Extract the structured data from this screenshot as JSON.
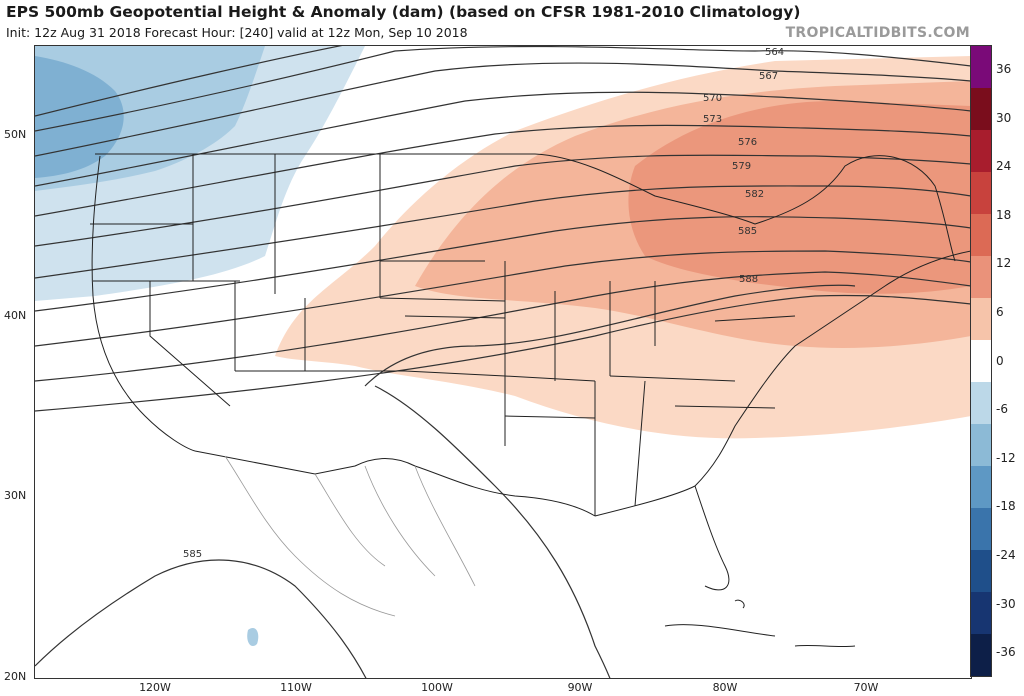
{
  "header": {
    "title": "EPS 500mb Geopotential Height & Anomaly (dam) (based on CFSR 1981-2010 Climatology)",
    "subtitle": "Init: 12z Aug 31 2018   Forecast Hour: [240]   valid at 12z Mon, Sep 10 2018",
    "brand": "TROPICALTIDBITS.COM"
  },
  "axes": {
    "lat_labels": [
      "50N",
      "40N",
      "30N",
      "20N"
    ],
    "lon_labels": [
      "120W",
      "110W",
      "100W",
      "90W",
      "80W",
      "70W"
    ]
  },
  "contour_labels": [
    "564",
    "567",
    "570",
    "573",
    "576",
    "579",
    "582",
    "585",
    "588",
    "585"
  ],
  "colorbar": {
    "labels": [
      "36",
      "30",
      "24",
      "18",
      "12",
      "6",
      "0",
      "-6",
      "-12",
      "-18",
      "-24",
      "-30",
      "-36"
    ],
    "colors": [
      "#7a0a78",
      "#7a0d1c",
      "#a81d2d",
      "#c8423d",
      "#dc6a55",
      "#ea927a",
      "#f6c4aa",
      "#ffffff",
      "#bcd8e8",
      "#8cbad6",
      "#5e98c4",
      "#3a74ab",
      "#1f4f8a",
      "#173571",
      "#0d1f48"
    ]
  }
}
